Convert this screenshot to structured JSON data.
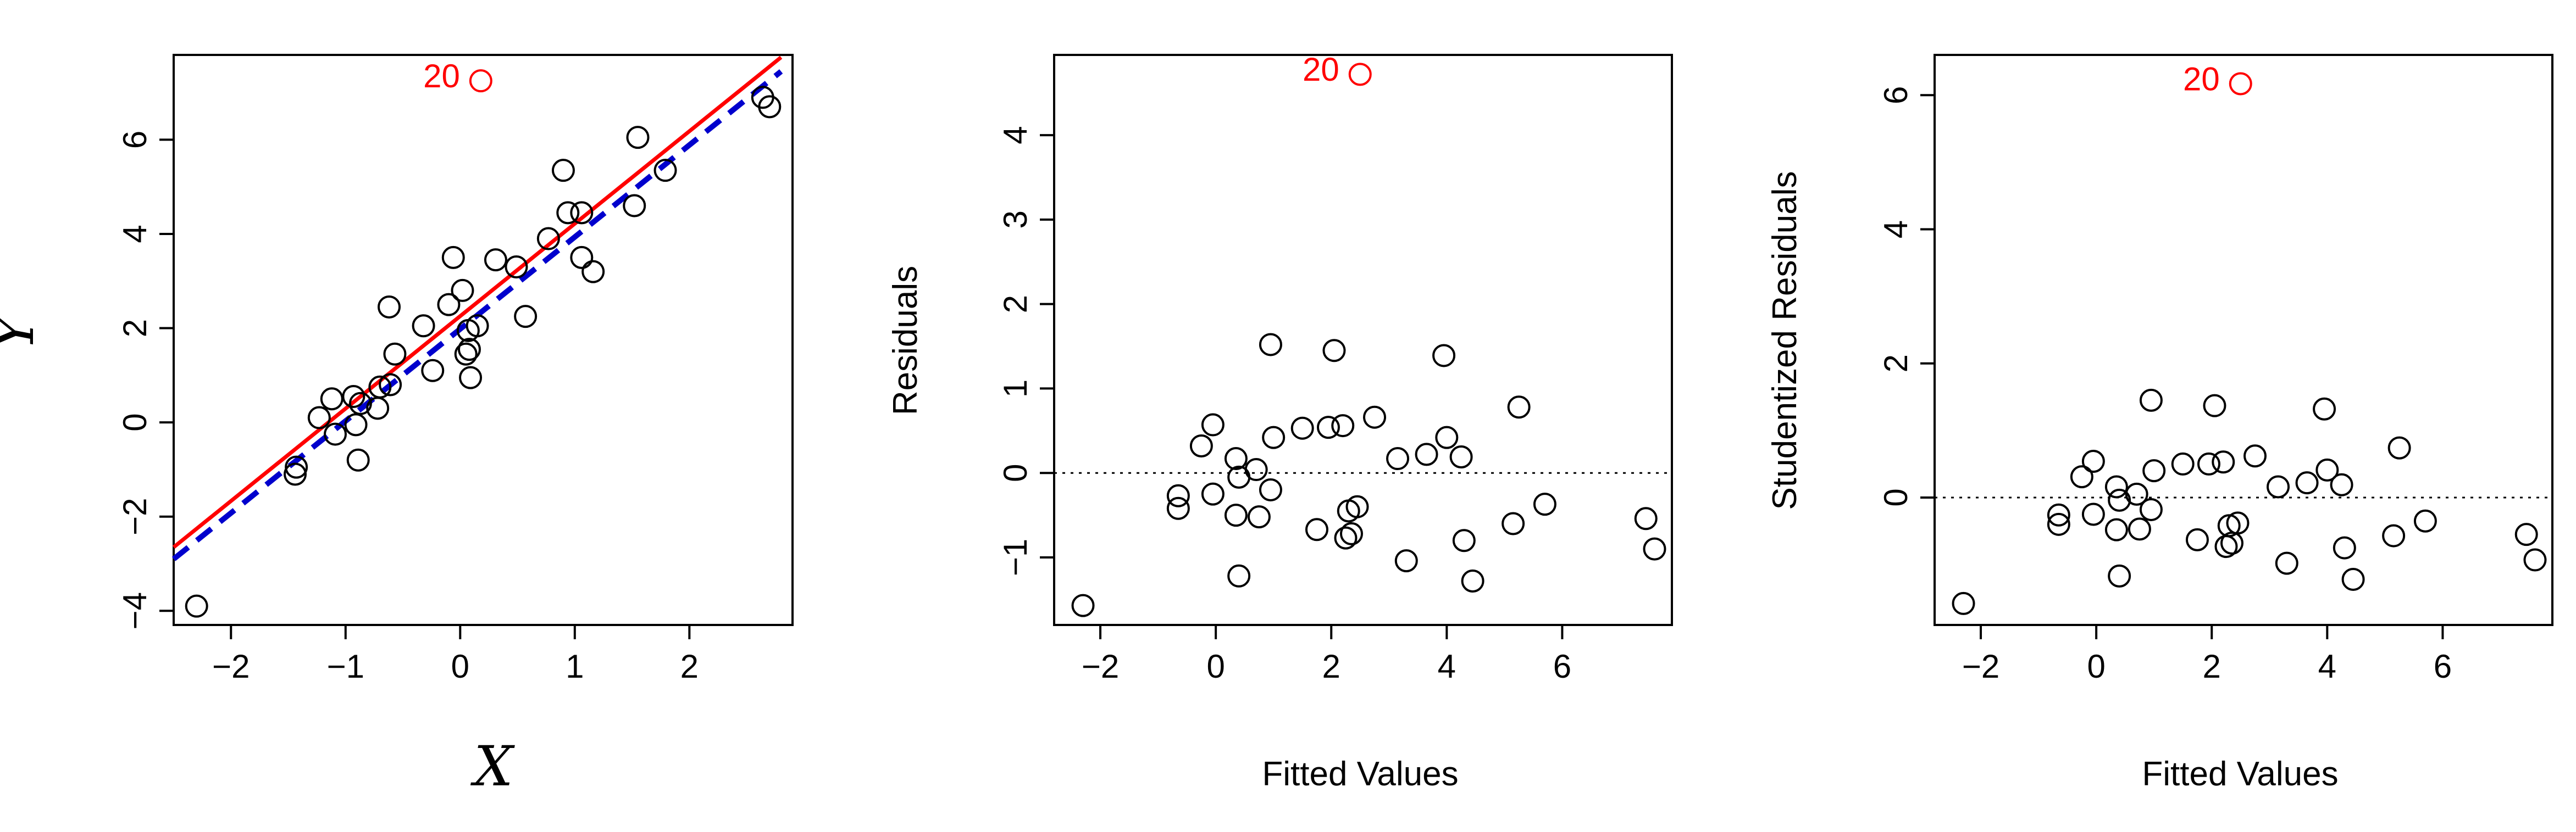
{
  "colors": {
    "outlier": "#ff0000",
    "fit_all": "#ff0000",
    "fit_without_outlier": "#0000cd",
    "points": "#000000"
  },
  "chart_data": [
    {
      "type": "scatter",
      "title": "",
      "xlabel": "X",
      "ylabel": "Y",
      "xlim": [
        -2.5,
        2.9
      ],
      "ylim": [
        -4.3,
        7.8
      ],
      "xticks": [
        -2,
        -1,
        0,
        1,
        2
      ],
      "yticks": [
        -4,
        -2,
        0,
        2,
        4,
        6
      ],
      "grid": false,
      "outlier": {
        "label": "20",
        "x": 0.18,
        "y": 7.25
      },
      "lines": [
        {
          "style": "solid",
          "color": "#ff0000",
          "x": [
            -2.5,
            2.8
          ],
          "y": [
            -2.65,
            7.75
          ]
        },
        {
          "style": "dashed",
          "color": "#0000cd",
          "x": [
            -2.5,
            2.8
          ],
          "y": [
            -2.9,
            7.45
          ]
        }
      ],
      "series": [
        {
          "x": [
            -2.3,
            -1.44,
            -1.43,
            -1.23,
            -1.12,
            -1.09,
            -0.93,
            -0.91,
            -0.89,
            -0.87,
            -0.72,
            -0.7,
            -0.62,
            -0.61,
            -0.57,
            -0.32,
            -0.24,
            -0.1,
            -0.06,
            0.02,
            0.05,
            0.07,
            0.08,
            0.09,
            0.15,
            0.31,
            0.49,
            0.57,
            0.77,
            0.9,
            0.94,
            1.06,
            1.06,
            1.16,
            1.52,
            1.55,
            1.79,
            2.64,
            2.7
          ],
          "y": [
            -3.9,
            -1.1,
            -0.95,
            0.1,
            0.5,
            -0.25,
            0.55,
            -0.05,
            -0.8,
            0.4,
            0.3,
            0.75,
            2.45,
            0.8,
            1.45,
            2.05,
            1.1,
            2.5,
            3.5,
            2.8,
            1.45,
            1.95,
            1.55,
            0.95,
            2.05,
            3.45,
            3.3,
            2.25,
            3.9,
            5.35,
            4.45,
            4.45,
            3.5,
            3.2,
            4.6,
            6.05,
            5.35,
            6.9,
            6.7
          ]
        }
      ]
    },
    {
      "type": "scatter",
      "title": "",
      "xlabel": "Fitted Values",
      "ylabel": "Residuals",
      "xlim": [
        -2.8,
        7.9
      ],
      "ylim": [
        -1.8,
        4.95
      ],
      "xticks": [
        -2,
        0,
        2,
        4,
        6
      ],
      "yticks": [
        -1,
        0,
        1,
        2,
        3,
        4
      ],
      "grid": false,
      "reference_line_y": 0,
      "outlier": {
        "label": "20",
        "x": 2.5,
        "y": 4.72
      },
      "series": [
        {
          "x": [
            -2.3,
            -0.65,
            -0.65,
            -0.25,
            -0.05,
            -0.05,
            0.35,
            0.35,
            0.4,
            0.4,
            0.7,
            0.75,
            0.95,
            0.95,
            1.0,
            1.5,
            1.75,
            1.95,
            2.05,
            2.2,
            2.25,
            2.3,
            2.35,
            2.45,
            2.75,
            3.15,
            3.3,
            3.65,
            3.95,
            4.0,
            4.25,
            4.3,
            4.45,
            5.15,
            5.25,
            5.7,
            7.45,
            7.6
          ],
          "y": [
            -1.57,
            -0.27,
            -0.42,
            0.32,
            0.57,
            -0.25,
            0.17,
            -0.5,
            -0.05,
            -1.22,
            0.04,
            -0.52,
            1.52,
            -0.2,
            0.42,
            0.53,
            -0.67,
            0.54,
            1.45,
            0.56,
            -0.77,
            -0.45,
            -0.72,
            -0.4,
            0.66,
            0.17,
            -1.04,
            0.22,
            1.39,
            0.42,
            0.19,
            -0.8,
            -1.28,
            -0.6,
            0.78,
            -0.37,
            -0.54,
            -0.9
          ]
        }
      ]
    },
    {
      "type": "scatter",
      "title": "",
      "xlabel": "Fitted Values",
      "ylabel": "Studentized Residuals",
      "xlim": [
        -2.8,
        7.9
      ],
      "ylim": [
        -1.9,
        6.6
      ],
      "xticks": [
        -2,
        0,
        2,
        4,
        6
      ],
      "yticks": [
        0,
        2,
        4,
        6
      ],
      "grid": false,
      "reference_line_y": 0,
      "outlier": {
        "label": "20",
        "x": 2.5,
        "y": 6.17
      },
      "series": [
        {
          "x": [
            -2.3,
            -0.65,
            -0.65,
            -0.25,
            -0.05,
            -0.05,
            0.35,
            0.35,
            0.4,
            0.4,
            0.7,
            0.75,
            0.95,
            0.95,
            1.0,
            1.5,
            1.75,
            1.95,
            2.05,
            2.2,
            2.25,
            2.3,
            2.35,
            2.45,
            2.75,
            3.15,
            3.3,
            3.65,
            3.95,
            4.0,
            4.25,
            4.3,
            4.45,
            5.15,
            5.25,
            5.7,
            7.45,
            7.6
          ],
          "y": [
            -1.58,
            -0.26,
            -0.4,
            0.31,
            0.54,
            -0.25,
            0.16,
            -0.48,
            -0.04,
            -1.17,
            0.05,
            -0.47,
            1.45,
            -0.18,
            0.4,
            0.5,
            -0.63,
            0.5,
            1.37,
            0.53,
            -0.73,
            -0.42,
            -0.68,
            -0.38,
            0.62,
            0.16,
            -0.98,
            0.22,
            1.32,
            0.41,
            0.19,
            -0.75,
            -1.22,
            -0.57,
            0.74,
            -0.35,
            -0.55,
            -0.93
          ]
        }
      ]
    }
  ]
}
